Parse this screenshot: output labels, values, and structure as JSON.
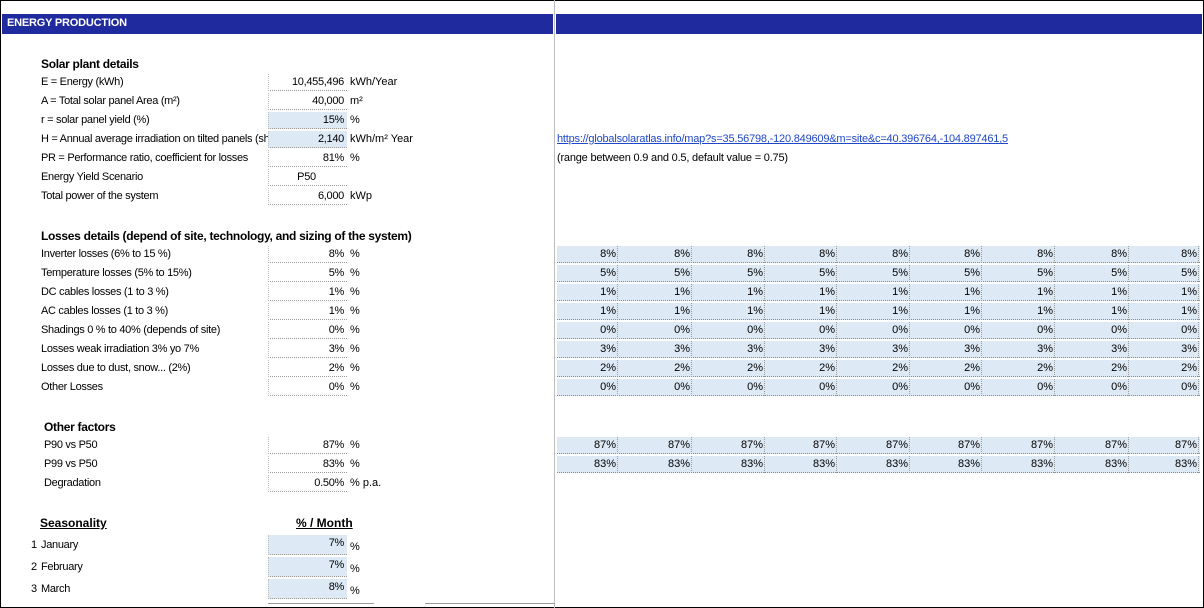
{
  "header": {
    "title": "ENERGY PRODUCTION"
  },
  "solar": {
    "title": "Solar plant details",
    "rows": [
      {
        "label": "E = Energy  (kWh)",
        "value": "10,455,496",
        "unit": "kWh/Year",
        "blue": false
      },
      {
        "label": "A = Total solar panel Area  (m²)",
        "value": "40,000",
        "unit": "m²",
        "blue": false
      },
      {
        "label": "r = solar panel yield (%)",
        "value": "15%",
        "unit": "%",
        "blue": true
      },
      {
        "label": "H = Annual average irradiation on tilted panels (shadin",
        "value": "2,140",
        "unit": "kWh/m² Year",
        "blue": true
      },
      {
        "label": "PR = Performance ratio, coefficient for losses",
        "value": "81%",
        "unit": "%",
        "blue": false
      },
      {
        "label": "Energy Yield Scenario",
        "value": "P50",
        "unit": "",
        "blue": false
      },
      {
        "label": "Total power of the system",
        "value": "6,000",
        "unit": "kWp",
        "blue": false
      }
    ],
    "link": "https://globalsolaratlas.info/map?s=35.56798,-120.849609&m=site&c=40.396764,-104.897461,5",
    "note": "(range between 0.9 and 0.5, default value =  0.75)"
  },
  "losses": {
    "title": "Losses details (depend of site, technology, and sizing of the system)",
    "rows": [
      {
        "label": "Inverter losses (6% to 15 %)",
        "value": "8%",
        "unit": "%",
        "series": [
          "8%",
          "8%",
          "8%",
          "8%",
          "8%",
          "8%",
          "8%",
          "8%",
          "8%"
        ]
      },
      {
        "label": "Temperature losses (5% to 15%)",
        "value": "5%",
        "unit": "%",
        "series": [
          "5%",
          "5%",
          "5%",
          "5%",
          "5%",
          "5%",
          "5%",
          "5%",
          "5%"
        ]
      },
      {
        "label": "DC cables losses (1 to 3 %)",
        "value": "1%",
        "unit": "%",
        "series": [
          "1%",
          "1%",
          "1%",
          "1%",
          "1%",
          "1%",
          "1%",
          "1%",
          "1%"
        ]
      },
      {
        "label": "AC cables losses (1 to 3 %)",
        "value": "1%",
        "unit": "%",
        "series": [
          "1%",
          "1%",
          "1%",
          "1%",
          "1%",
          "1%",
          "1%",
          "1%",
          "1%"
        ]
      },
      {
        "label": "Shadings  0 % to 40% (depends of site)",
        "value": "0%",
        "unit": "%",
        "series": [
          "0%",
          "0%",
          "0%",
          "0%",
          "0%",
          "0%",
          "0%",
          "0%",
          "0%"
        ]
      },
      {
        "label": "Losses weak irradiation 3% yo 7%",
        "value": "3%",
        "unit": "%",
        "series": [
          "3%",
          "3%",
          "3%",
          "3%",
          "3%",
          "3%",
          "3%",
          "3%",
          "3%"
        ]
      },
      {
        "label": "Losses due to dust, snow... (2%)",
        "value": "2%",
        "unit": "%",
        "series": [
          "2%",
          "2%",
          "2%",
          "2%",
          "2%",
          "2%",
          "2%",
          "2%",
          "2%"
        ]
      },
      {
        "label": "Other Losses",
        "value": "0%",
        "unit": "%",
        "series": [
          "0%",
          "0%",
          "0%",
          "0%",
          "0%",
          "0%",
          "0%",
          "0%",
          "0%"
        ]
      }
    ]
  },
  "other": {
    "title": "Other factors",
    "rows": [
      {
        "label": "P90 vs P50",
        "value": "87%",
        "unit": "%",
        "series": [
          "87%",
          "87%",
          "87%",
          "87%",
          "87%",
          "87%",
          "87%",
          "87%",
          "87%"
        ]
      },
      {
        "label": "P99 vs P50",
        "value": "83%",
        "unit": "%",
        "series": [
          "83%",
          "83%",
          "83%",
          "83%",
          "83%",
          "83%",
          "83%",
          "83%",
          "83%"
        ]
      },
      {
        "label": "Degradation",
        "value": "0.50%",
        "unit": "% p.a."
      }
    ]
  },
  "seasonality": {
    "title": "Seasonality",
    "col_header": "% / Month",
    "rows": [
      {
        "num": "1",
        "label": "January",
        "value": "7%",
        "unit": "%"
      },
      {
        "num": "2",
        "label": "February",
        "value": "7%",
        "unit": "%"
      },
      {
        "num": "3",
        "label": "March",
        "value": "8%",
        "unit": "%"
      }
    ]
  },
  "colors": {
    "band": "#1f2a9e",
    "input_blue": "#dde9f5",
    "link": "#1f47c7"
  }
}
